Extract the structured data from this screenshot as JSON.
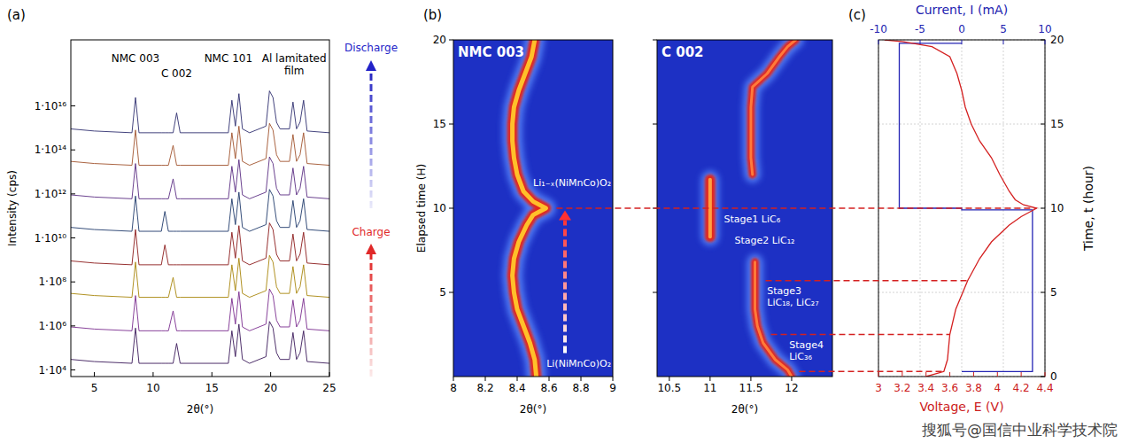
{
  "chart_data": [
    {
      "panel_label": "(a)",
      "type": "line",
      "x_label": "2θ(°)",
      "y_label": "Intensity (cps)",
      "log": "y",
      "x": [
        3,
        5,
        8.2,
        8.5,
        8.8,
        10.7,
        11.0,
        11.3,
        11.7,
        12.0,
        12.3,
        16.4,
        16.7,
        17.0,
        17.3,
        17.6,
        18.2,
        19.6,
        19.9,
        20.2,
        20.5,
        20.8,
        21.6,
        21.9,
        22.2,
        22.5,
        22.8,
        23.1,
        25
      ],
      "series": [
        {
          "color": "#3b1a5a",
          "values": [
            30000.0,
            24000.0,
            20000.0,
            800000.0,
            20000.0,
            20000.0,
            20000.0,
            20000.0,
            20000.0,
            160000.0,
            20000.0,
            20000.0,
            600000.0,
            40000.0,
            1200000.0,
            30000.0,
            20000.0,
            40000.0,
            1600000.0,
            800000.0,
            60000.0,
            30000.0,
            30000.0,
            500000.0,
            30000.0,
            60000.0,
            600000.0,
            24000.0,
            20000.0
          ]
        },
        {
          "color": "#7a2c8f",
          "values": [
            900000.0,
            720000.0,
            600000.0,
            24000000.0,
            600000.0,
            600000.0,
            600000.0,
            600000.0,
            4800000.0,
            600000.0,
            600000.0,
            600000.0,
            18000000.0,
            1200000.0,
            36000000.0,
            900000.0,
            600000.0,
            1200000.0,
            48000000.0,
            24000000.0,
            1800000.0,
            900000.0,
            900000.0,
            15000000.0,
            900000.0,
            1800000.0,
            18000000.0,
            720000.0,
            600000.0
          ]
        },
        {
          "color": "#a8860b",
          "values": [
            30000000.0,
            24000000.0,
            20000000.0,
            800000000.0,
            20000000.0,
            20000000.0,
            20000000.0,
            20000000.0,
            160000000.0,
            20000000.0,
            20000000.0,
            20000000.0,
            600000000.0,
            40000000.0,
            1200000000.0,
            30000000.0,
            20000000.0,
            40000000.0,
            1600000000.0,
            800000000.0,
            60000000.0,
            30000000.0,
            30000000.0,
            500000000.0,
            30000000.0,
            60000000.0,
            600000000.0,
            24000000.0,
            20000000.0
          ]
        },
        {
          "color": "#8b1a1a",
          "values": [
            900000000.0,
            720000000.0,
            600000000.0,
            24000000000.0,
            600000000.0,
            600000000.0,
            4800000000.0,
            600000000.0,
            600000000.0,
            600000000.0,
            600000000.0,
            600000000.0,
            18000000000.0,
            1200000000.0,
            36000000000.0,
            900000000.0,
            600000000.0,
            1200000000.0,
            48000000000.0,
            24000000000.0,
            1800000000.0,
            900000000.0,
            900000000.0,
            15000000000.0,
            900000000.0,
            1800000000.0,
            18000000000.0,
            720000000.0,
            600000000.0
          ]
        },
        {
          "color": "#1f3a6b",
          "values": [
            30000000000.0,
            24000000000.0,
            20000000000.0,
            800000000000.0,
            20000000000.0,
            20000000000.0,
            160000000000.0,
            20000000000.0,
            20000000000.0,
            20000000000.0,
            20000000000.0,
            20000000000.0,
            600000000000.0,
            40000000000.0,
            1200000000000.0,
            30000000000.0,
            20000000000.0,
            40000000000.0,
            1600000000000.0,
            800000000000.0,
            60000000000.0,
            30000000000.0,
            30000000000.0,
            500000000000.0,
            30000000000.0,
            60000000000.0,
            600000000000.0,
            24000000000.0,
            20000000000.0
          ]
        },
        {
          "color": "#5a2d82",
          "values": [
            900000000000.0,
            720000000000.0,
            600000000000.0,
            24000000000000.0,
            600000000000.0,
            600000000000.0,
            600000000000.0,
            600000000000.0,
            4800000000000.0,
            600000000000.0,
            600000000000.0,
            600000000000.0,
            18000000000000.0,
            1200000000000.0,
            36000000000000.0,
            900000000000.0,
            600000000000.0,
            1200000000000.0,
            48000000000000.0,
            24000000000000.0,
            1800000000000.0,
            900000000000.0,
            900000000000.0,
            15000000000000.0,
            900000000000.0,
            1800000000000.0,
            18000000000000.0,
            720000000000.0,
            600000000000.0
          ]
        },
        {
          "color": "#a0522d",
          "values": [
            30000000000000.0,
            24000000000000.0,
            20000000000000.0,
            800000000000000.0,
            20000000000000.0,
            20000000000000.0,
            20000000000000.0,
            20000000000000.0,
            160000000000000.0,
            20000000000000.0,
            20000000000000.0,
            20000000000000.0,
            600000000000000.0,
            40000000000000.0,
            1200000000000000.0,
            30000000000000.0,
            20000000000000.0,
            40000000000000.0,
            1600000000000000.0,
            800000000000000.0,
            60000000000000.0,
            30000000000000.0,
            30000000000000.0,
            500000000000000.0,
            30000000000000.0,
            60000000000000.0,
            600000000000000.0,
            24000000000000.0,
            20000000000000.0
          ]
        },
        {
          "color": "#2f2f6f",
          "values": [
            900000000000000.0,
            720000000000000.0,
            600000000000000.0,
            2.4e+16,
            600000000000000.0,
            600000000000000.0,
            600000000000000.0,
            600000000000000.0,
            600000000000000.0,
            4800000000000000.0,
            600000000000000.0,
            600000000000000.0,
            1.8e+16,
            1200000000000000.0,
            3.6e+16,
            900000000000000.0,
            600000000000000.0,
            1200000000000000.0,
            4.8e+16,
            2.4e+16,
            1800000000000000.0,
            900000000000000.0,
            900000000000000.0,
            1.5e+16,
            900000000000000.0,
            1800000000000000.0,
            1.8e+16,
            720000000000000.0,
            600000000000000.0
          ]
        }
      ],
      "xlim": [
        3,
        25
      ],
      "xticks": [
        5,
        10,
        15,
        20,
        25
      ],
      "ylim": [
        5000,
        1e+19
      ],
      "yticks": [
        {
          "value": 10000,
          "label": "1·10⁴"
        },
        {
          "value": 1000000,
          "label": "1·10⁶"
        },
        {
          "value": 100000000.0,
          "label": "1·10⁸"
        },
        {
          "value": 10000000000.0,
          "label": "1·10¹⁰"
        },
        {
          "value": 1000000000000.0,
          "label": "1·10¹²"
        },
        {
          "value": 100000000000000.0,
          "label": "1·10¹⁴"
        },
        {
          "value": 1e+16,
          "label": "1·10¹⁶"
        }
      ],
      "annotations": [
        {
          "text": "NMC 003",
          "x": 8.5,
          "y": 1e+18
        },
        {
          "text": "C 002",
          "x": 12.0,
          "y": 2e+17
        },
        {
          "text": "NMC 101",
          "x": 16.4,
          "y": 1e+18
        },
        {
          "text": "Al lamitated film",
          "x": 22.0,
          "y": 1e+18
        }
      ],
      "direction_labels": [
        "Discharge",
        "Charge"
      ]
    },
    {
      "panel_label": "(b)",
      "type": "line",
      "title": "NMC 003",
      "x_label": "2θ(°)",
      "y_label": "Elapsed time (H)",
      "xlim": [
        8,
        9
      ],
      "xticks": [
        8,
        8.2,
        8.4,
        8.6,
        8.8,
        9
      ],
      "ylim": [
        0,
        20
      ],
      "yticks": [
        5,
        10,
        15,
        20
      ],
      "series": [
        {
          "color": "#ffc02a",
          "x": [
            8.52,
            8.51,
            8.48,
            8.44,
            8.4,
            8.38,
            8.37,
            8.38,
            8.41,
            8.46,
            8.5,
            8.58,
            8.5,
            8.44,
            8.4,
            8.38,
            8.37,
            8.37,
            8.38,
            8.41,
            8.45,
            8.49,
            8.51
          ],
          "values": [
            0,
            1,
            2,
            3,
            4,
            5,
            6,
            7,
            8,
            9,
            9.6,
            10,
            10.4,
            11,
            12,
            13,
            14,
            15,
            16,
            17,
            18,
            19,
            20
          ]
        }
      ],
      "annotations": [
        {
          "text": "Li₁₋ₓ(NiMnCo)O₂",
          "x": 8.99,
          "y": 11.3
        },
        {
          "text": "Li(NiMnCo)O₂",
          "x": 8.99,
          "y": 0.6
        }
      ]
    },
    {
      "type": "line",
      "title": "C 002",
      "x_label": "2θ(°)",
      "tick_labels": "x",
      "xlim": [
        10.35,
        12.5
      ],
      "xticks": [
        10.5,
        11,
        11.5,
        12
      ],
      "ylim": [
        0,
        20
      ],
      "yticks": [
        5,
        10,
        15,
        20
      ],
      "series": [
        {
          "color": "#ff7a3a",
          "x": [
            12.0,
            11.95,
            11.8,
            11.65,
            11.58,
            11.55,
            11.55,
            11.55,
            11.55,
            null,
            11.52,
            11.5,
            11.5,
            11.5,
            11.5,
            11.52,
            11.7,
            11.85,
            11.95,
            12.05
          ],
          "values": [
            0,
            0.4,
            1,
            2,
            3,
            4,
            5,
            6,
            6.8,
            null,
            12,
            13,
            14,
            15,
            16,
            17.2,
            18,
            19,
            19.6,
            20
          ]
        },
        {
          "color": "#ffa040",
          "x": [
            11.0,
            11.0,
            11.0,
            11.0,
            11.0
          ],
          "values": [
            8.3,
            9,
            10,
            11,
            11.7
          ]
        }
      ],
      "annotations": [
        {
          "text": "Stage1 LiC₆",
          "x": 11.17,
          "y": 9.15
        },
        {
          "text": "Stage2 LiC₁₂",
          "x": 11.3,
          "y": 7.9
        },
        {
          "text": "Stage3 LiC₁₈, LiC₂₇",
          "x": 11.7,
          "y": 4.9
        },
        {
          "text": "Stage4 LiC₃₆",
          "x": 11.97,
          "y": 1.7
        }
      ]
    },
    {
      "panel_label": "(c)",
      "type": "line",
      "grid": true,
      "x_label": "Voltage, E (V)",
      "xlim": [
        3,
        4.4
      ],
      "xticks": [
        3,
        3.2,
        3.4,
        3.6,
        3.8,
        4,
        4.2,
        4.4
      ],
      "x2_label": "Current, I (mA)",
      "x2lim": [
        -10,
        10
      ],
      "x2ticks": [
        -10,
        -5,
        0,
        5,
        10
      ],
      "y_label": "Time, t (hour)",
      "ylim": [
        0,
        20
      ],
      "yticks": [
        0,
        5,
        10,
        15,
        20
      ],
      "series": [
        {
          "color": "#2424b4",
          "axis": "x2",
          "x": [
            0,
            8.5,
            8.5,
            0,
            0,
            -7.5,
            -7.5,
            0
          ],
          "values": [
            0.3,
            0.3,
            9.9,
            9.9,
            10,
            10,
            19.8,
            19.8
          ]
        },
        {
          "color": "#d42020",
          "x": [
            3.4,
            3.55,
            3.58,
            3.6,
            3.65,
            3.75,
            3.85,
            3.95,
            4.1,
            4.2,
            4.33,
            4.22,
            4.15,
            4.1,
            4.02,
            3.95,
            3.85,
            3.78,
            3.73,
            3.7,
            3.66,
            3.6,
            3.45,
            3.2,
            3.05
          ],
          "values": [
            0,
            0.3,
            1,
            2.5,
            4,
            5.7,
            7,
            8,
            9,
            9.5,
            10,
            10.2,
            10.5,
            11,
            12,
            13,
            14,
            15,
            16,
            17,
            18,
            19,
            19.6,
            19.9,
            20
          ]
        }
      ],
      "reference_times": [
        0.3,
        2.5,
        5.7,
        10
      ]
    }
  ],
  "watermark": "搜狐号@国信中业科学技术院"
}
